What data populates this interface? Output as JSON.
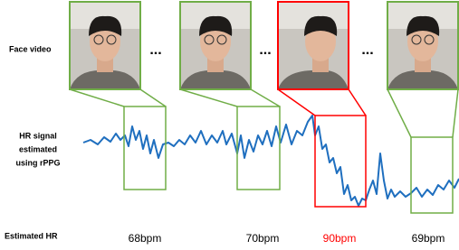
{
  "labels": {
    "face_video": "Face video",
    "hr_signal": [
      "HR signal",
      "estimated",
      "using rPPG"
    ],
    "estimated_hr": "Estimated HR"
  },
  "ellipsis": "...",
  "frames": [
    {
      "hr": "68bpm",
      "color": "#70ad47"
    },
    {
      "hr": "70bpm",
      "color": "#70ad47"
    },
    {
      "hr": "90bpm",
      "color": "#ff0000"
    },
    {
      "hr": "69bpm",
      "color": "#70ad47"
    }
  ]
}
